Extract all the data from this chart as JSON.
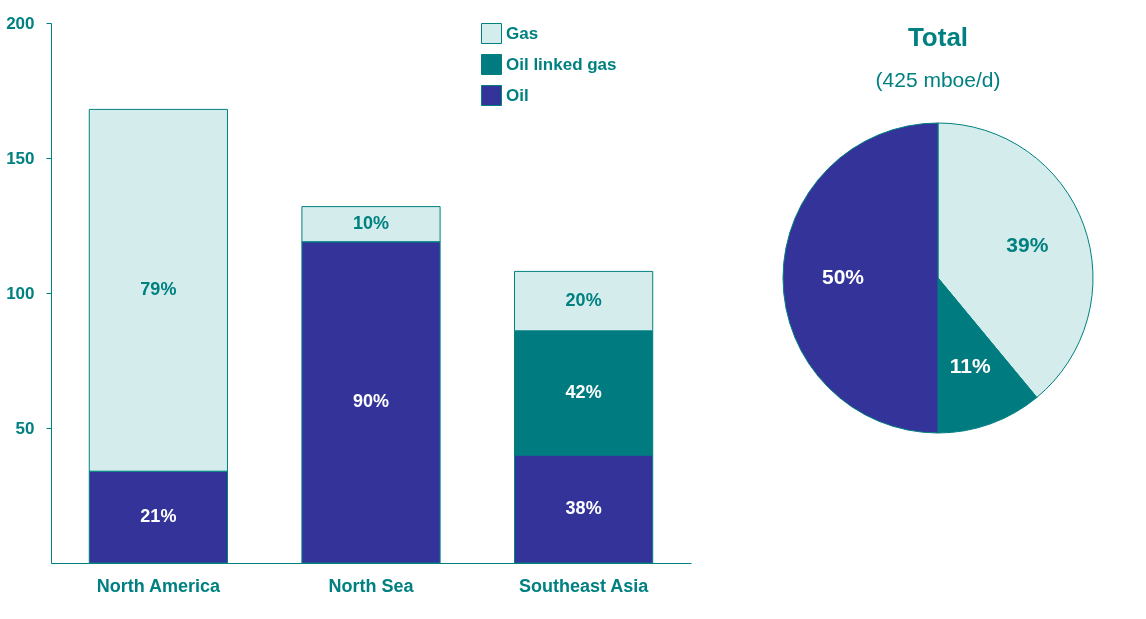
{
  "chart_data": [
    {
      "type": "bar",
      "stacked": true,
      "categories": [
        "North America",
        "North Sea",
        "Southeast Asia"
      ],
      "ylim": [
        0,
        200
      ],
      "yticks": [
        50,
        100,
        150,
        200
      ],
      "grid": false,
      "legend": "top right",
      "series": [
        {
          "name": "Oil",
          "color": "#333399",
          "values": [
            34,
            119,
            40
          ]
        },
        {
          "name": "Oil linked gas",
          "color": "#007b80",
          "values": [
            0,
            0,
            46
          ]
        },
        {
          "name": "Gas",
          "color": "#d4ecec",
          "values": [
            134,
            13,
            22
          ]
        }
      ],
      "annotations": [
        "21%",
        "79%",
        "90%",
        "10%",
        "38%",
        "42%",
        "20%"
      ]
    },
    {
      "type": "pie",
      "title": "Total",
      "subtitle": "(425 mboe/d)",
      "categories": [
        null,
        null,
        null
      ],
      "values": [
        39,
        11,
        50
      ],
      "colors": [
        "#d4ecec",
        "#007b80",
        "#333399"
      ],
      "value_labels": [
        "39%",
        "11%",
        "50%"
      ]
    }
  ]
}
